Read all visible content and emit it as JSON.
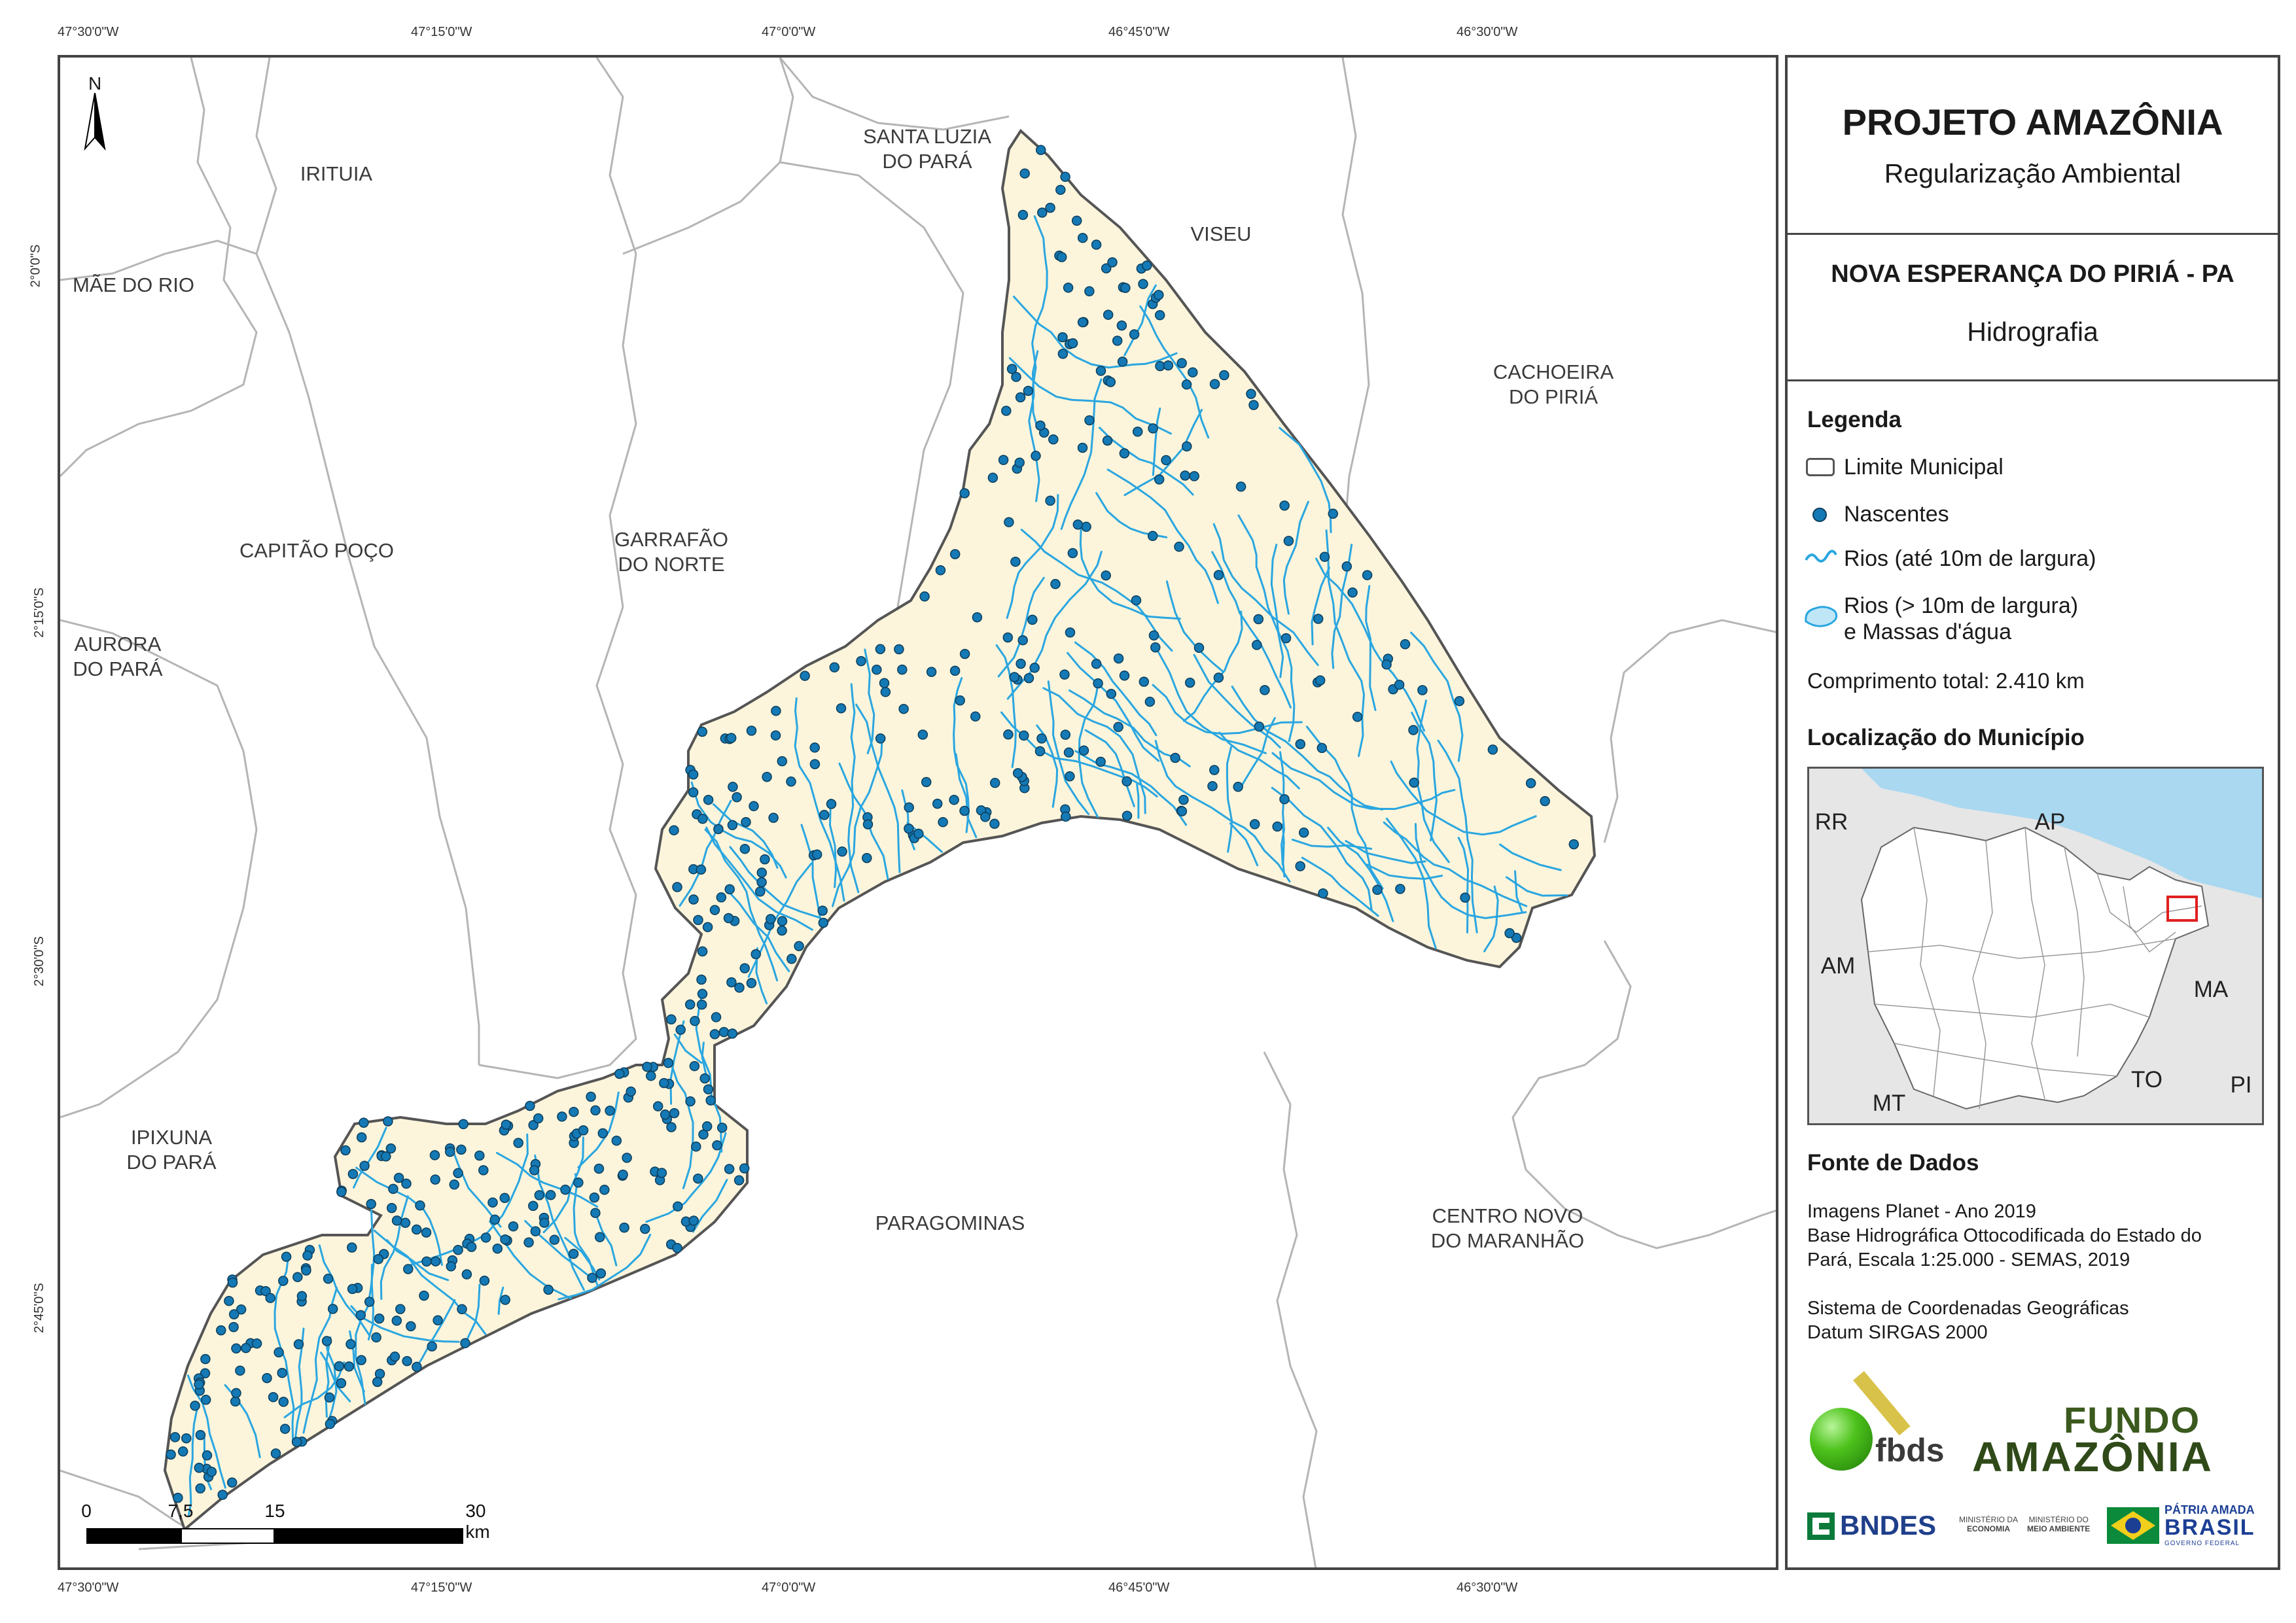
{
  "coords": {
    "top": [
      "47°30'0\"W",
      "47°15'0\"W",
      "47°0'0\"W",
      "46°45'0\"W",
      "46°30'0\"W"
    ],
    "bottom": [
      "47°30'0\"W",
      "47°15'0\"W",
      "47°0'0\"W",
      "46°45'0\"W",
      "46°30'0\"W"
    ],
    "left": [
      "2°0'0\"S",
      "2°15'0\"S",
      "2°30'0\"S",
      "2°45'0\"S"
    ]
  },
  "north_arrow": "N",
  "municipalities": {
    "irituia": "IRITUIA",
    "mae_do_rio": "MÃE DO RIO",
    "santa_luzia_1": "SANTA LUZIA",
    "santa_luzia_2": "DO PARÁ",
    "viseu": "VISEU",
    "cachoeira_1": "CACHOEIRA",
    "cachoeira_2": "DO PIRIÁ",
    "capitao_poco": "CAPITÃO POÇO",
    "garrafao_1": "GARRAFÃO",
    "garrafao_2": "DO NORTE",
    "aurora_1": "AURORA",
    "aurora_2": "DO PARÁ",
    "ipixuna_1": "IPIXUNA",
    "ipixuna_2": "DO PARÁ",
    "paragominas": "PARAGOMINAS",
    "centro_novo_1": "CENTRO NOVO",
    "centro_novo_2": "DO MARANHÃO"
  },
  "scale_bar": {
    "labels": [
      "0",
      "7,5",
      "15",
      "30 km"
    ]
  },
  "panel": {
    "title": "PROJETO AMAZÔNIA",
    "subtitle": "Regularização Ambiental",
    "municipality": "NOVA ESPERANÇA DO PIRIÁ - PA",
    "theme": "Hidrografia",
    "legend_title": "Legenda",
    "legend": {
      "limit": "Limite Municipal",
      "springs": "Nascentes",
      "rivers_small": "Rios (até 10m de largura)",
      "rivers_large_1": "Rios (> 10m de largura)",
      "rivers_large_2": "e Massas d'água"
    },
    "total_length": "Comprimento total:  2.410 km",
    "location_title": "Localização do Município",
    "inset_states": {
      "rr": "RR",
      "ap": "AP",
      "am": "AM",
      "ma": "MA",
      "mt": "MT",
      "to": "TO",
      "pi": "PI"
    },
    "sources_title": "Fonte de Dados",
    "sources": [
      "Imagens Planet - Ano 2019",
      "Base Hidrográfica Ottocodificada do Estado do",
      "Pará, Escala 1:25.000 - SEMAS, 2019",
      "Sistema de Coordenadas Geográficas",
      "Datum SIRGAS 2000"
    ],
    "logos": {
      "fbds": "fbds",
      "fundo_1": "FUNDO",
      "fundo_2": "AMAZÔNIA",
      "bndes": "BNDES",
      "min_economia_1": "MINISTÉRIO DA",
      "min_economia_2": "ECONOMIA",
      "min_ambiente_1": "MINISTÉRIO DO",
      "min_ambiente_2": "MEIO AMBIENTE",
      "patria_1": "PÁTRIA AMADA",
      "patria_2": "BRASIL",
      "patria_3": "GOVERNO FEDERAL"
    }
  },
  "colors": {
    "municipality_fill": "#fcf5dc",
    "river": "#2aa6e0",
    "spring": "#1479b4",
    "ocean": "#a9d8f0"
  }
}
